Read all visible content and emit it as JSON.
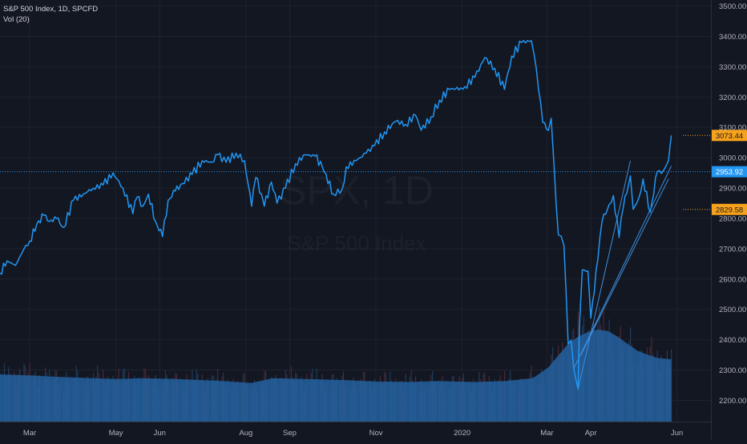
{
  "legend": {
    "title": "S&P 500 Index, 1D, SPCFD",
    "indicator": "Vol (20)"
  },
  "watermark": {
    "symbol": "SPX, 1D",
    "name": "S&P 500 Index"
  },
  "colors": {
    "background": "#131722",
    "price_line": "#2196f3",
    "volume_bar": "#2a5f94",
    "volume_ma": "#2462a0",
    "trendline": "#3d8fe0",
    "crosshair": "#2196f3",
    "price_label_current": "#2196f3",
    "price_label_level": "#f7a21b",
    "grid": "#1e222d",
    "axis_text": "#b2b5be"
  },
  "chart_data": {
    "type": "line",
    "title": "S&P 500 Index, 1D, SPCFD",
    "xlabel": "",
    "ylabel": "",
    "ylim": [
      2130,
      3520
    ],
    "grid": true,
    "x_ticks": [
      {
        "label": "Mar",
        "x": "2019-03-01"
      },
      {
        "label": "May",
        "x": "2019-05-01"
      },
      {
        "label": "Jun",
        "x": "2019-06-01"
      },
      {
        "label": "Aug",
        "x": "2019-08-01"
      },
      {
        "label": "Sep",
        "x": "2019-09-01"
      },
      {
        "label": "Nov",
        "x": "2019-11-01"
      },
      {
        "label": "2020",
        "x": "2020-01-01"
      },
      {
        "label": "Mar",
        "x": "2020-03-01"
      },
      {
        "label": "Apr",
        "x": "2020-04-01"
      },
      {
        "label": "Jun",
        "x": "2020-06-01"
      }
    ],
    "y_ticks": [
      2200,
      2300,
      2400,
      2500,
      2600,
      2700,
      2800,
      2900,
      3000,
      3100,
      3200,
      3300,
      3400,
      3500
    ],
    "price_labels": [
      {
        "value": 3073.44,
        "label": "3073.44",
        "kind": "level"
      },
      {
        "value": 2953.92,
        "label": "2953.92",
        "kind": "current"
      },
      {
        "value": 2829.58,
        "label": "2829.58",
        "kind": "level"
      }
    ],
    "series": [
      {
        "values": [
          [
            "2019-02-08",
            2620
          ],
          [
            "2019-02-13",
            2660
          ],
          [
            "2019-02-19",
            2645
          ],
          [
            "2019-02-25",
            2700
          ],
          [
            "2019-03-01",
            2725
          ],
          [
            "2019-03-06",
            2780
          ],
          [
            "2019-03-11",
            2810
          ],
          [
            "2019-03-15",
            2790
          ],
          [
            "2019-03-20",
            2800
          ],
          [
            "2019-03-25",
            2770
          ],
          [
            "2019-04-01",
            2860
          ],
          [
            "2019-04-08",
            2880
          ],
          [
            "2019-04-15",
            2900
          ],
          [
            "2019-04-22",
            2910
          ],
          [
            "2019-04-29",
            2950
          ],
          [
            "2019-05-06",
            2900
          ],
          [
            "2019-05-13",
            2815
          ],
          [
            "2019-05-16",
            2870
          ],
          [
            "2019-05-20",
            2840
          ],
          [
            "2019-05-24",
            2880
          ],
          [
            "2019-05-29",
            2790
          ],
          [
            "2019-06-03",
            2740
          ],
          [
            "2019-06-07",
            2860
          ],
          [
            "2019-06-12",
            2890
          ],
          [
            "2019-06-17",
            2915
          ],
          [
            "2019-06-24",
            2945
          ],
          [
            "2019-07-01",
            2990
          ],
          [
            "2019-07-08",
            2985
          ],
          [
            "2019-07-12",
            3010
          ],
          [
            "2019-07-18",
            2985
          ],
          [
            "2019-07-25",
            3015
          ],
          [
            "2019-07-31",
            2990
          ],
          [
            "2019-08-05",
            2840
          ],
          [
            "2019-08-08",
            2935
          ],
          [
            "2019-08-12",
            2880
          ],
          [
            "2019-08-14",
            2840
          ],
          [
            "2019-08-19",
            2920
          ],
          [
            "2019-08-23",
            2850
          ],
          [
            "2019-08-29",
            2900
          ],
          [
            "2019-09-05",
            2980
          ],
          [
            "2019-09-12",
            3010
          ],
          [
            "2019-09-19",
            3005
          ],
          [
            "2019-09-24",
            2970
          ],
          [
            "2019-10-02",
            2880
          ],
          [
            "2019-10-08",
            2895
          ],
          [
            "2019-10-11",
            2970
          ],
          [
            "2019-10-18",
            2990
          ],
          [
            "2019-10-25",
            3015
          ],
          [
            "2019-10-31",
            3040
          ],
          [
            "2019-11-07",
            3085
          ],
          [
            "2019-11-15",
            3120
          ],
          [
            "2019-11-22",
            3110
          ],
          [
            "2019-11-29",
            3140
          ],
          [
            "2019-12-03",
            3090
          ],
          [
            "2019-12-10",
            3135
          ],
          [
            "2019-12-16",
            3190
          ],
          [
            "2019-12-23",
            3225
          ],
          [
            "2019-12-31",
            3230
          ],
          [
            "2020-01-03",
            3235
          ],
          [
            "2020-01-10",
            3265
          ],
          [
            "2020-01-17",
            3330
          ],
          [
            "2020-01-24",
            3295
          ],
          [
            "2020-01-31",
            3225
          ],
          [
            "2020-02-05",
            3335
          ],
          [
            "2020-02-12",
            3380
          ],
          [
            "2020-02-19",
            3386
          ],
          [
            "2020-02-21",
            3337
          ],
          [
            "2020-02-24",
            3225
          ],
          [
            "2020-02-27",
            3116
          ],
          [
            "2020-03-02",
            3090
          ],
          [
            "2020-03-04",
            3130
          ],
          [
            "2020-03-06",
            2972
          ],
          [
            "2020-03-09",
            2746
          ],
          [
            "2020-03-11",
            2741
          ],
          [
            "2020-03-13",
            2711
          ],
          [
            "2020-03-16",
            2386
          ],
          [
            "2020-03-18",
            2398
          ],
          [
            "2020-03-20",
            2305
          ],
          [
            "2020-03-23",
            2237
          ],
          [
            "2020-03-24",
            2447
          ],
          [
            "2020-03-26",
            2630
          ],
          [
            "2020-03-30",
            2627
          ],
          [
            "2020-04-01",
            2471
          ],
          [
            "2020-04-06",
            2664
          ],
          [
            "2020-04-09",
            2790
          ],
          [
            "2020-04-14",
            2846
          ],
          [
            "2020-04-17",
            2875
          ],
          [
            "2020-04-21",
            2737
          ],
          [
            "2020-04-24",
            2837
          ],
          [
            "2020-04-29",
            2940
          ],
          [
            "2020-05-01",
            2830
          ],
          [
            "2020-05-05",
            2868
          ],
          [
            "2020-05-08",
            2930
          ],
          [
            "2020-05-13",
            2820
          ],
          [
            "2020-05-18",
            2954
          ],
          [
            "2020-05-21",
            2948
          ],
          [
            "2020-05-22",
            2955
          ],
          [
            "2020-05-26",
            2991
          ],
          [
            "2020-05-27",
            3036
          ],
          [
            "2020-05-28",
            3073.44
          ]
        ]
      }
    ],
    "volume": {
      "ma_length": 20,
      "values": [
        [
          "2019-02-08",
          1.0
        ],
        [
          "2019-03-01",
          0.98
        ],
        [
          "2019-03-20",
          0.95
        ],
        [
          "2019-04-15",
          0.92
        ],
        [
          "2019-05-01",
          0.9
        ],
        [
          "2019-05-20",
          0.92
        ],
        [
          "2019-06-15",
          0.9
        ],
        [
          "2019-07-15",
          0.86
        ],
        [
          "2019-08-05",
          0.82
        ],
        [
          "2019-08-20",
          0.92
        ],
        [
          "2019-09-15",
          0.9
        ],
        [
          "2019-10-10",
          0.88
        ],
        [
          "2019-11-01",
          0.85
        ],
        [
          "2019-11-25",
          0.84
        ],
        [
          "2019-12-15",
          0.86
        ],
        [
          "2020-01-10",
          0.84
        ],
        [
          "2020-02-01",
          0.86
        ],
        [
          "2020-02-20",
          0.92
        ],
        [
          "2020-03-02",
          1.15
        ],
        [
          "2020-03-09",
          1.4
        ],
        [
          "2020-03-16",
          1.65
        ],
        [
          "2020-03-23",
          1.8
        ],
        [
          "2020-03-30",
          1.9
        ],
        [
          "2020-04-06",
          1.95
        ],
        [
          "2020-04-13",
          1.92
        ],
        [
          "2020-04-20",
          1.8
        ],
        [
          "2020-04-27",
          1.65
        ],
        [
          "2020-05-04",
          1.5
        ],
        [
          "2020-05-11",
          1.42
        ],
        [
          "2020-05-18",
          1.35
        ],
        [
          "2020-05-28",
          1.32
        ]
      ]
    },
    "trendlines": [
      {
        "from": [
          "2020-03-20",
          2305
        ],
        "to": [
          "2020-05-28",
          2973
        ]
      },
      {
        "from": [
          "2020-03-23",
          2237
        ],
        "to": [
          "2020-04-29",
          2990
        ]
      },
      {
        "from": [
          "2020-03-25",
          2350
        ],
        "to": [
          "2020-05-26",
          2930
        ]
      }
    ]
  }
}
